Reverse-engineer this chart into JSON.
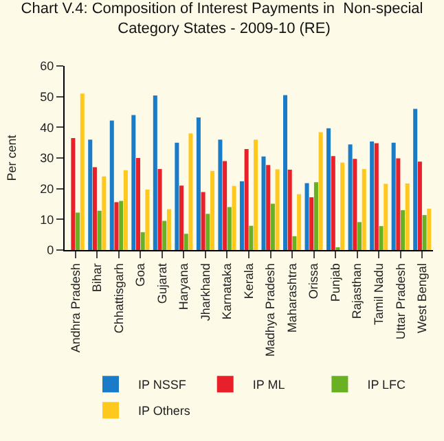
{
  "chart_data": {
    "type": "bar",
    "title": "Chart V.4: Composition of Interest Payments in  Non-special Category States - 2009-10 (RE)",
    "ylabel": "Per cent",
    "categories": [
      "Andhra Pradesh",
      "Bihar",
      "Chhattisgarh",
      "Goa",
      "Gujarat",
      "Haryana",
      "Jharkhand",
      "Karnataka",
      "Kerala",
      "Madhya Pradesh",
      "Maharashtra",
      "Orissa",
      "Punjab",
      "Rajasthan",
      "Tamil Nadu",
      "Uttar Pradesh",
      "West Bengal"
    ],
    "series": [
      {
        "name": "IP NSSF",
        "color": "#1a7cc9",
        "values": [
          null,
          36,
          42.2,
          44,
          50.4,
          35,
          43.2,
          36,
          22.4,
          30.5,
          50.5,
          21.8,
          39.7,
          34.4,
          35.4,
          35,
          46
        ]
      },
      {
        "name": "IP ML",
        "color": "#e8202a",
        "values": [
          36.5,
          27,
          15.6,
          30,
          26.4,
          21,
          18.9,
          29,
          32.9,
          27.7,
          26.2,
          17.2,
          30.6,
          29.7,
          34.8,
          29.9,
          28.8
        ]
      },
      {
        "name": "IP LFC",
        "color": "#6ab023",
        "values": [
          12.2,
          12.8,
          16,
          5.8,
          9.5,
          5.3,
          11.8,
          14,
          7.9,
          15.1,
          4.5,
          22.1,
          0.8,
          9.1,
          7.8,
          13,
          11.4
        ]
      },
      {
        "name": "IP Others",
        "color": "#ffc81e",
        "values": [
          51,
          24,
          26,
          19.7,
          13.3,
          38,
          25.8,
          20.9,
          36,
          26.3,
          18.2,
          38.4,
          28.5,
          26.4,
          21.6,
          21.7,
          13.5
        ]
      }
    ],
    "ylim": [
      0,
      60
    ],
    "yticks": [
      0,
      10,
      20,
      30,
      40,
      50,
      60
    ],
    "grid": false,
    "legend": "bottom"
  }
}
